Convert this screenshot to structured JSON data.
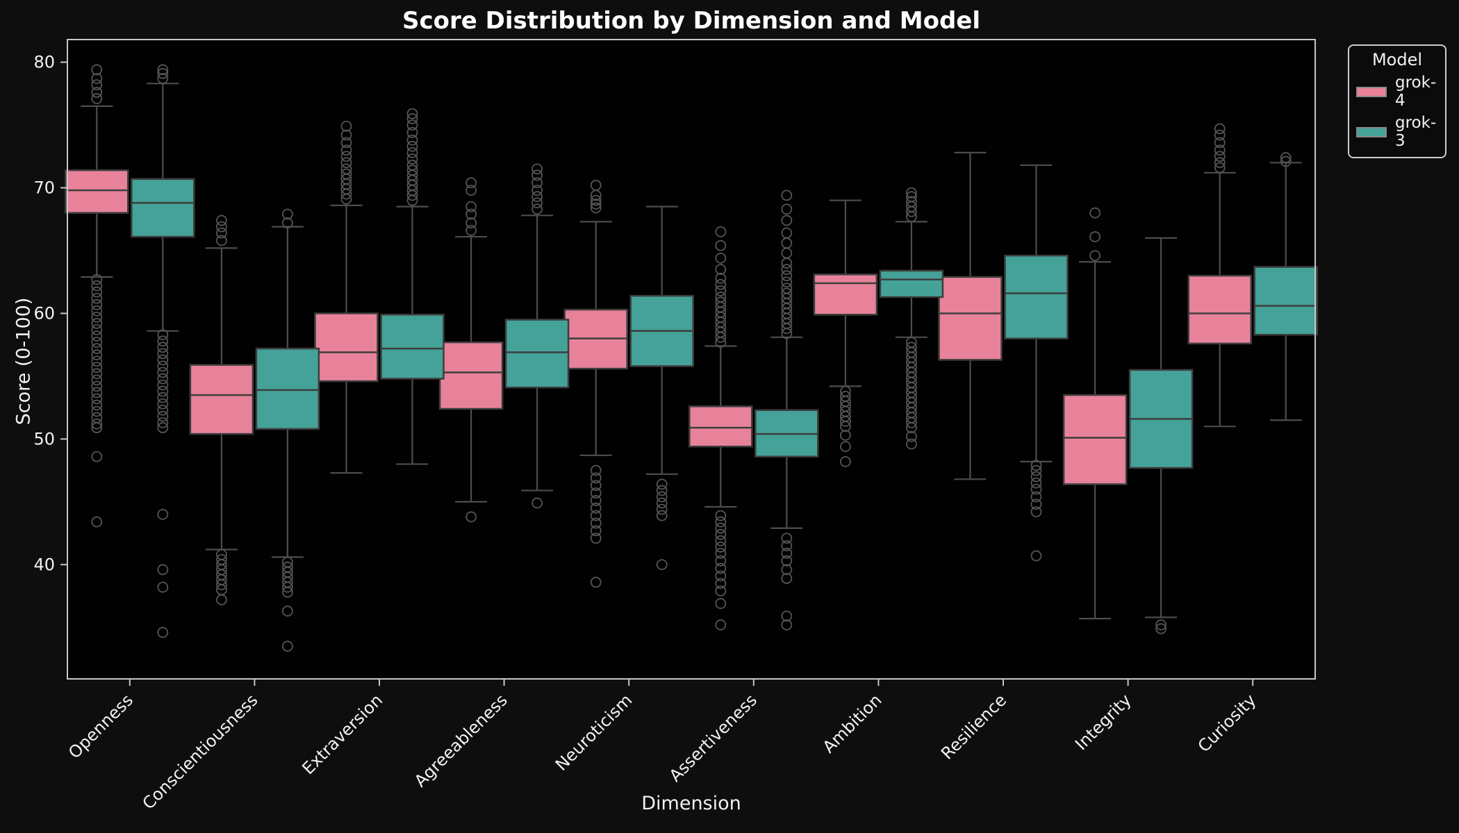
{
  "chart_data": {
    "type": "boxplot-grouped",
    "title": "Score Distribution by Dimension and Model",
    "xlabel": "Dimension",
    "ylabel": "Score (0-100)",
    "ylim": [
      30.9,
      81.8
    ],
    "yticks": [
      40,
      50,
      60,
      70,
      80
    ],
    "grid": false,
    "legend": {
      "title": "Model",
      "position": "outside-upper-right",
      "entries": [
        {
          "label": "grok-4",
          "color": "#e8829a"
        },
        {
          "label": "grok-3",
          "color": "#45a298"
        }
      ]
    },
    "categories": [
      "Openness",
      "Conscientiousness",
      "Extraversion",
      "Agreeableness",
      "Neuroticism",
      "Assertiveness",
      "Ambition",
      "Resilience",
      "Integrity",
      "Curiosity"
    ],
    "series": [
      {
        "name": "grok-4",
        "color": "#e8829a",
        "boxes": [
          {
            "whislo": 62.9,
            "q1": 68.0,
            "med": 69.8,
            "q3": 71.4,
            "whishi": 76.5,
            "fliers_hi": [
              77.1,
              77.6,
              78.2,
              78.7,
              79.4
            ],
            "fliers_lo": [
              62.7,
              62.2,
              61.7,
              61.2,
              60.7,
              60.2,
              59.7,
              59.2,
              58.7,
              58.2,
              57.7,
              57.2,
              56.7,
              56.2,
              55.7,
              55.2,
              54.7,
              54.2,
              53.7,
              53.2,
              52.7,
              52.2,
              51.7,
              51.2,
              50.9,
              48.6,
              43.4
            ]
          },
          {
            "whislo": 41.2,
            "q1": 50.4,
            "med": 53.5,
            "q3": 55.9,
            "whishi": 65.2,
            "fliers_hi": [
              65.8,
              66.4,
              66.9,
              67.4
            ],
            "fliers_lo": [
              40.8,
              40.4,
              40.0,
              39.6,
              39.2,
              38.8,
              38.4,
              38.0,
              37.2
            ]
          },
          {
            "whislo": 47.3,
            "q1": 54.6,
            "med": 56.9,
            "q3": 60.0,
            "whishi": 68.6,
            "fliers_hi": [
              69.1,
              69.5,
              69.9,
              70.3,
              70.7,
              71.1,
              71.5,
              72.0,
              72.5,
              73.0,
              73.6,
              74.2,
              74.9
            ],
            "fliers_lo": []
          },
          {
            "whislo": 45.0,
            "q1": 52.4,
            "med": 55.3,
            "q3": 57.7,
            "whishi": 66.1,
            "fliers_hi": [
              66.6,
              67.2,
              67.9,
              68.5,
              69.8,
              70.4
            ],
            "fliers_lo": [
              43.8
            ]
          },
          {
            "whislo": 48.7,
            "q1": 55.6,
            "med": 58.0,
            "q3": 60.3,
            "whishi": 67.3,
            "fliers_hi": [
              68.4,
              68.7,
              69.0,
              69.4,
              70.2
            ],
            "fliers_lo": [
              47.5,
              46.9,
              46.3,
              45.7,
              45.1,
              44.5,
              43.9,
              43.3,
              42.7,
              42.1,
              38.6
            ]
          },
          {
            "whislo": 44.6,
            "q1": 49.4,
            "med": 50.9,
            "q3": 52.6,
            "whishi": 57.4,
            "fliers_hi": [
              57.7,
              58.1,
              58.5,
              58.9,
              59.3,
              59.7,
              60.1,
              60.5,
              60.9,
              61.3,
              61.8,
              62.3,
              62.8,
              63.5,
              64.4,
              65.4,
              66.5
            ],
            "fliers_lo": [
              43.9,
              43.4,
              42.9,
              42.4,
              41.9,
              41.4,
              40.9,
              40.3,
              39.7,
              39.1,
              38.5,
              37.9,
              36.9,
              35.2
            ]
          },
          {
            "whislo": 54.2,
            "q1": 59.9,
            "med": 62.4,
            "q3": 63.1,
            "whishi": 69.0,
            "fliers_hi": [],
            "fliers_lo": [
              53.8,
              53.4,
              53.0,
              52.6,
              52.2,
              51.8,
              51.4,
              51.0,
              50.3,
              49.4,
              48.2
            ]
          },
          {
            "whislo": 46.8,
            "q1": 56.3,
            "med": 60.0,
            "q3": 62.9,
            "whishi": 72.8,
            "fliers_hi": [],
            "fliers_lo": []
          },
          {
            "whislo": 35.7,
            "q1": 46.4,
            "med": 50.1,
            "q3": 53.5,
            "whishi": 64.1,
            "fliers_hi": [
              64.6,
              66.1,
              68.0
            ],
            "fliers_lo": []
          },
          {
            "whislo": 51.0,
            "q1": 57.6,
            "med": 60.0,
            "q3": 63.0,
            "whishi": 71.2,
            "fliers_hi": [
              71.6,
              72.0,
              72.5,
              73.0,
              73.6,
              74.2,
              74.7
            ],
            "fliers_lo": []
          }
        ]
      },
      {
        "name": "grok-3",
        "color": "#45a298",
        "boxes": [
          {
            "whislo": 58.6,
            "q1": 66.1,
            "med": 68.8,
            "q3": 70.7,
            "whishi": 78.3,
            "fliers_hi": [
              78.7,
              79.1,
              79.4
            ],
            "fliers_lo": [
              58.3,
              57.8,
              57.3,
              56.8,
              56.3,
              55.8,
              55.3,
              54.8,
              54.3,
              53.8,
              53.3,
              52.8,
              52.3,
              51.8,
              51.3,
              50.9,
              44.0,
              39.6,
              38.2,
              34.6
            ]
          },
          {
            "whislo": 40.6,
            "q1": 50.8,
            "med": 53.9,
            "q3": 57.2,
            "whishi": 66.9,
            "fliers_hi": [
              67.2,
              67.9
            ],
            "fliers_lo": [
              40.2,
              39.8,
              39.4,
              39.0,
              38.6,
              38.2,
              37.8,
              36.3,
              33.5
            ]
          },
          {
            "whislo": 48.0,
            "q1": 54.8,
            "med": 57.2,
            "q3": 59.9,
            "whishi": 68.5,
            "fliers_hi": [
              69.0,
              69.4,
              69.8,
              70.2,
              70.6,
              71.0,
              71.4,
              71.8,
              72.3,
              72.8,
              73.3,
              73.8,
              74.4,
              75.0,
              75.5,
              75.9
            ],
            "fliers_lo": []
          },
          {
            "whislo": 45.9,
            "q1": 54.1,
            "med": 56.9,
            "q3": 59.5,
            "whishi": 67.8,
            "fliers_hi": [
              68.3,
              68.8,
              69.3,
              69.8,
              70.4,
              71.0,
              71.5
            ],
            "fliers_lo": [
              44.9
            ]
          },
          {
            "whislo": 47.2,
            "q1": 55.8,
            "med": 58.6,
            "q3": 61.4,
            "whishi": 68.5,
            "fliers_hi": [],
            "fliers_lo": [
              46.4,
              45.9,
              45.4,
              44.9,
              44.4,
              43.9,
              40.0
            ]
          },
          {
            "whislo": 42.9,
            "q1": 48.6,
            "med": 50.4,
            "q3": 52.3,
            "whishi": 58.1,
            "fliers_hi": [
              58.4,
              58.8,
              59.2,
              59.6,
              60.0,
              60.4,
              60.8,
              61.2,
              61.6,
              62.0,
              62.5,
              63.0,
              63.5,
              64.0,
              64.8,
              65.6,
              66.4,
              67.4,
              68.3,
              69.4
            ],
            "fliers_lo": [
              42.1,
              41.5,
              40.9,
              40.3,
              39.6,
              38.9,
              35.9,
              35.2
            ]
          },
          {
            "whislo": 58.1,
            "q1": 61.3,
            "med": 62.7,
            "q3": 63.4,
            "whishi": 67.3,
            "fliers_hi": [
              67.7,
              68.1,
              68.5,
              68.9,
              69.3,
              69.6
            ],
            "fliers_lo": [
              57.7,
              57.3,
              56.9,
              56.5,
              56.1,
              55.7,
              55.3,
              54.9,
              54.5,
              54.1,
              53.7,
              53.3,
              52.9,
              52.5,
              52.1,
              51.7,
              51.3,
              50.9,
              50.2,
              49.6
            ]
          },
          {
            "whislo": 48.2,
            "q1": 58.0,
            "med": 61.6,
            "q3": 64.6,
            "whishi": 71.8,
            "fliers_hi": [],
            "fliers_lo": [
              47.9,
              47.5,
              47.0,
              46.5,
              46.0,
              45.4,
              44.8,
              44.2,
              40.7
            ]
          },
          {
            "whislo": 35.8,
            "q1": 47.7,
            "med": 51.6,
            "q3": 55.5,
            "whishi": 66.0,
            "fliers_hi": [],
            "fliers_lo": [
              35.2,
              34.9
            ]
          },
          {
            "whislo": 51.5,
            "q1": 58.3,
            "med": 60.6,
            "q3": 63.7,
            "whishi": 72.0,
            "fliers_hi": [
              72.1,
              72.4
            ],
            "fliers_lo": []
          }
        ]
      }
    ]
  },
  "style": {
    "figure_bg": "#0e0e0e",
    "plot_bg": "#010101",
    "spine_color": "#c7c7c7",
    "text_color": "#f2f2f2",
    "box_edge_color": "#3d3d3d",
    "whisker_color": "#4d4d4d",
    "flier_color": "#555555"
  }
}
